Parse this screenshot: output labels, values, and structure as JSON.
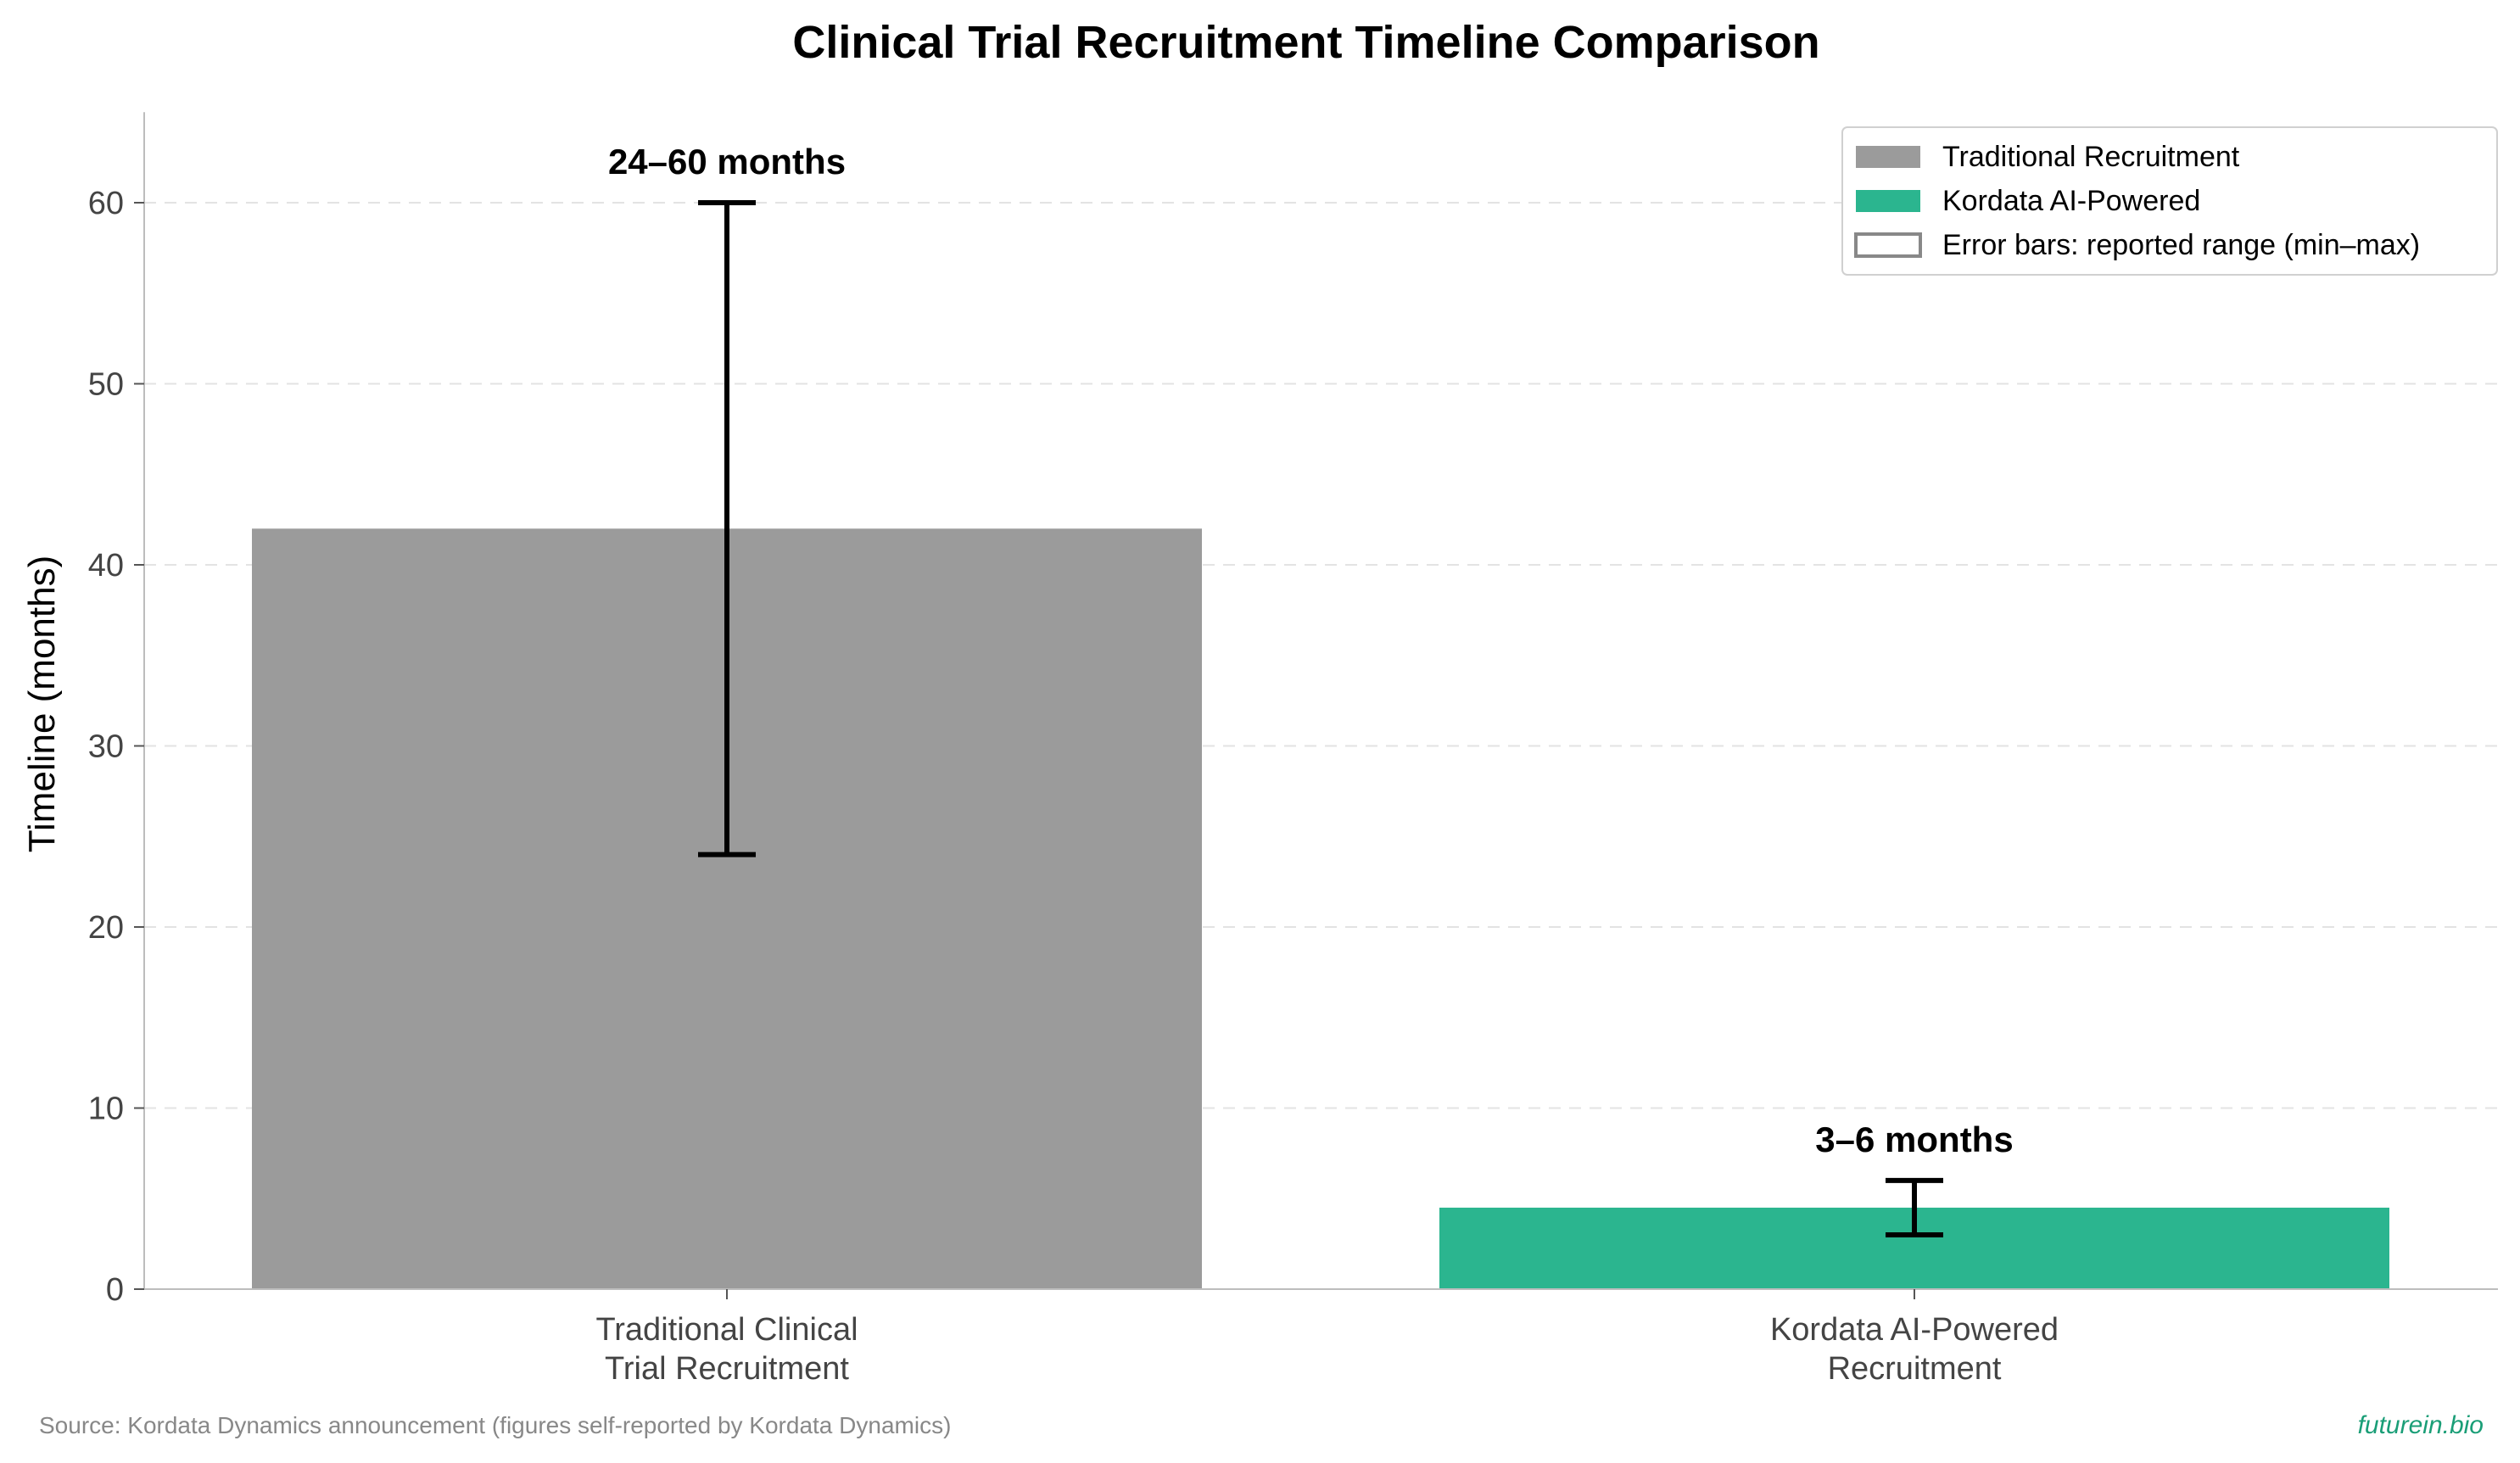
{
  "chart_data": {
    "type": "bar",
    "title": "Clinical Trial Recruitment Timeline Comparison",
    "ylabel": "Timeline (months)",
    "xlabel": "",
    "ylim": [
      0,
      65
    ],
    "yticks": [
      0,
      10,
      20,
      30,
      40,
      50,
      60
    ],
    "grid": "horizontal dashed",
    "legend_position": "top-right",
    "categories": [
      [
        "Traditional Clinical",
        "Trial Recruitment"
      ],
      [
        "Kordata AI-Powered",
        "Recruitment"
      ]
    ],
    "values": [
      42,
      4.5
    ],
    "error_ranges": [
      [
        24,
        60
      ],
      [
        3,
        6
      ]
    ],
    "data_labels": [
      "24–60 months",
      "3–6 months"
    ],
    "colors": [
      "#9b9b9b",
      "#2bb58f"
    ],
    "legend": [
      {
        "label": "Traditional Recruitment",
        "color": "#9b9b9b",
        "style": "filled"
      },
      {
        "label": "Kordata AI-Powered",
        "color": "#2bb58f",
        "style": "filled"
      },
      {
        "label": "Error bars: reported range (min–max)",
        "color": "#888888",
        "style": "outline"
      }
    ]
  },
  "footer": {
    "source": "Source: Kordata Dynamics announcement (figures self-reported by Kordata Dynamics)",
    "brand": "futurein.bio"
  }
}
